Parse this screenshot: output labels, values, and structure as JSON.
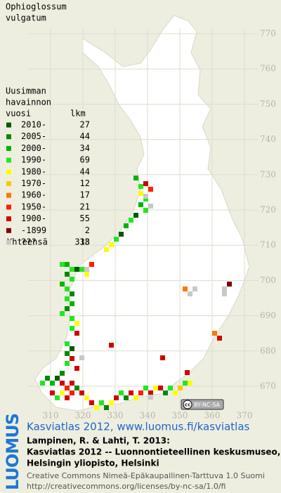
{
  "title": [
    "Ophioglossum",
    "vulgatum"
  ],
  "legend": {
    "heading": [
      "Uusimman",
      "havainnon",
      "vuosi"
    ],
    "count_heading": "lkm",
    "rows": [
      {
        "label": "2010-",
        "count": 27,
        "color": "#005a00"
      },
      {
        "label": "2005-",
        "count": 44,
        "color": "#008a00"
      },
      {
        "label": "2000-",
        "count": 34,
        "color": "#00b400"
      },
      {
        "label": "1990-",
        "count": 69,
        "color": "#22e622"
      },
      {
        "label": "1980-",
        "count": 44,
        "color": "#ffff00"
      },
      {
        "label": "1970-",
        "count": 12,
        "color": "#ffc800"
      },
      {
        "label": "1960-",
        "count": 17,
        "color": "#ff7800"
      },
      {
        "label": "1950-",
        "count": 21,
        "color": "#ff1e00"
      },
      {
        "label": "1900-",
        "count": 55,
        "color": "#d20000"
      },
      {
        "label": "-1899",
        "count": 2,
        "color": "#800000"
      },
      {
        "label": "???",
        "count": 13,
        "color": "#c8c8c8"
      }
    ],
    "total_label": "Yhteensä",
    "total": 338
  },
  "grid": {
    "y_labels": [
      770,
      760,
      750,
      740,
      730,
      720,
      710,
      700,
      690,
      680,
      670
    ],
    "x_labels": [
      310,
      320,
      330,
      340,
      350,
      360,
      370
    ]
  },
  "badge": {
    "cc": "cc",
    "text": "BY-NC-SA"
  },
  "footer": {
    "link": "Kasviatlas 2012, www.luomus.fi/kasviatlas",
    "citation": [
      "Lampinen, R. & Lahti, T. 2013:",
      "Kasviatlas 2012 -- Luonnontieteellinen keskusmuseo,",
      "Helsingin yliopisto, Helsinki"
    ],
    "license": [
      "Creative Commons Nimeä-Epäkaupallinen-Tarttuva 1.0 Suomi",
      "http://creativecommons.org/licenses/by-nc-sa/1.0/fi"
    ]
  },
  "logo": "LUOMUS"
}
